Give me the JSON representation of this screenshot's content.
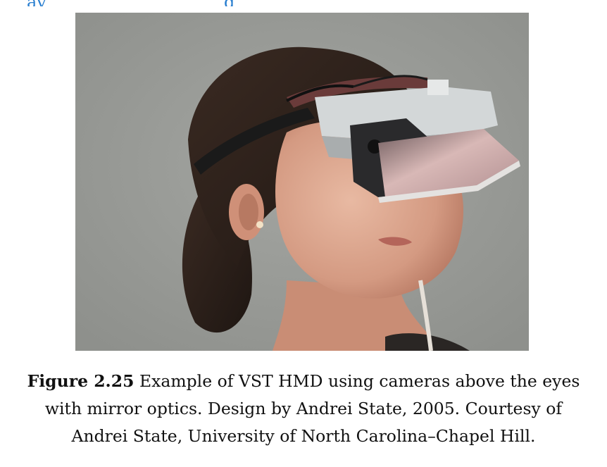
{
  "top_fragment": {
    "text_left": "ay",
    "text_right": "g"
  },
  "figure": {
    "image": {
      "subject": "woman-wearing-vst-hmd-photo"
    },
    "caption": {
      "label": "Figure 2.25",
      "line1": "Example of VST HMD using cameras above the eyes",
      "line2": "with mirror optics. Design by Andrei State, 2005. Courtesy of",
      "line3": "Andrei State, University of North Carolina–Chapel Hill."
    }
  }
}
